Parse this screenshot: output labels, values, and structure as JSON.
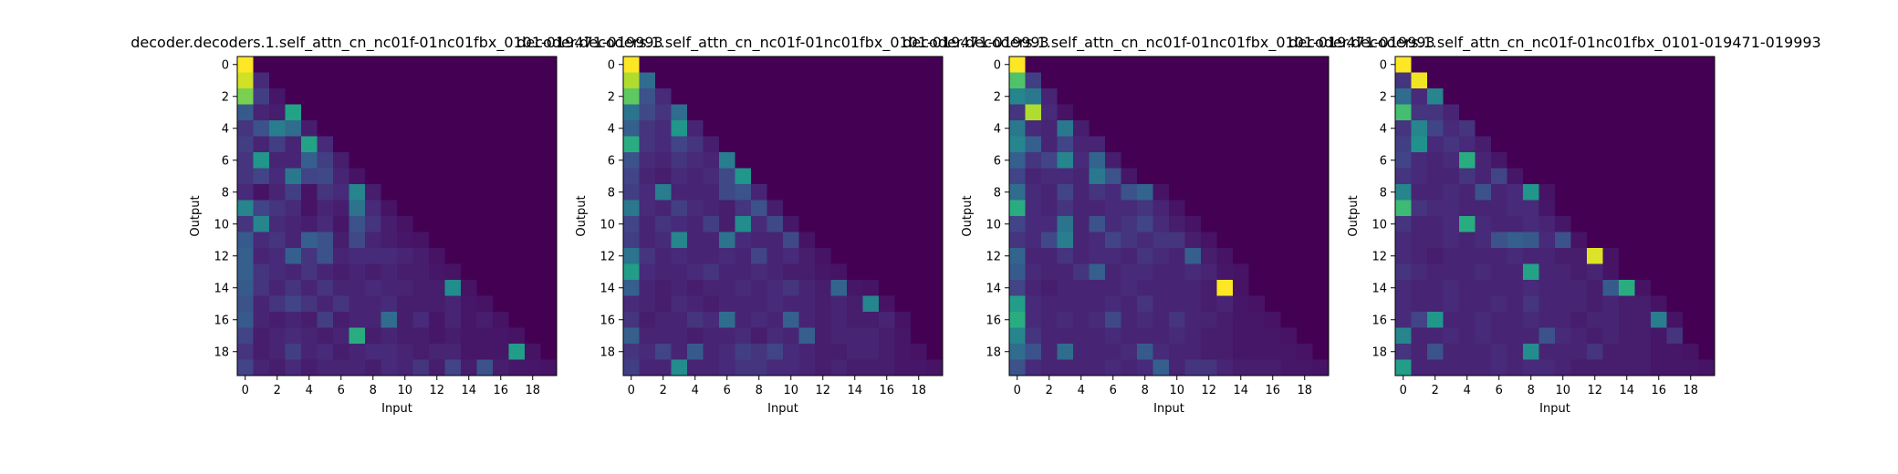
{
  "chart_data": [
    {
      "type": "heatmap",
      "title": "decoder.decoders.1.self_attn_cn_nc01f-01nc01fbx_0101-019471-019993",
      "xlabel": "Input",
      "ylabel": "Output",
      "xticks": [
        "0",
        "2",
        "4",
        "6",
        "8",
        "10",
        "12",
        "14",
        "16",
        "18"
      ],
      "yticks": [
        "0",
        "2",
        "4",
        "6",
        "8",
        "10",
        "12",
        "14",
        "16",
        "18"
      ],
      "size": 20,
      "colormap": "viridis",
      "vmin": 0,
      "vmax": 1,
      "values": [
        [
          1.0
        ],
        [
          0.93,
          0.12
        ],
        [
          0.8,
          0.18,
          0.06
        ],
        [
          0.28,
          0.1,
          0.08,
          0.58
        ],
        [
          0.15,
          0.25,
          0.42,
          0.35,
          0.08
        ],
        [
          0.18,
          0.1,
          0.18,
          0.1,
          0.58,
          0.12
        ],
        [
          0.15,
          0.52,
          0.1,
          0.1,
          0.3,
          0.18,
          0.08
        ],
        [
          0.15,
          0.2,
          0.12,
          0.4,
          0.2,
          0.22,
          0.1,
          0.05
        ],
        [
          0.12,
          0.05,
          0.1,
          0.18,
          0.05,
          0.15,
          0.12,
          0.45,
          0.08
        ],
        [
          0.45,
          0.2,
          0.15,
          0.12,
          0.05,
          0.1,
          0.08,
          0.38,
          0.12,
          0.05
        ],
        [
          0.15,
          0.45,
          0.12,
          0.1,
          0.08,
          0.12,
          0.06,
          0.25,
          0.15,
          0.08,
          0.05
        ],
        [
          0.28,
          0.12,
          0.15,
          0.1,
          0.3,
          0.25,
          0.08,
          0.22,
          0.1,
          0.08,
          0.06,
          0.05
        ],
        [
          0.3,
          0.1,
          0.12,
          0.3,
          0.15,
          0.25,
          0.1,
          0.12,
          0.12,
          0.12,
          0.1,
          0.08,
          0.05
        ],
        [
          0.3,
          0.15,
          0.12,
          0.1,
          0.15,
          0.1,
          0.08,
          0.1,
          0.08,
          0.1,
          0.08,
          0.08,
          0.06,
          0.05
        ],
        [
          0.28,
          0.15,
          0.1,
          0.15,
          0.1,
          0.15,
          0.1,
          0.1,
          0.12,
          0.1,
          0.1,
          0.08,
          0.08,
          0.48,
          0.05
        ],
        [
          0.25,
          0.1,
          0.15,
          0.2,
          0.15,
          0.1,
          0.15,
          0.1,
          0.1,
          0.12,
          0.08,
          0.08,
          0.08,
          0.1,
          0.06,
          0.05
        ],
        [
          0.28,
          0.1,
          0.08,
          0.1,
          0.08,
          0.18,
          0.08,
          0.1,
          0.1,
          0.35,
          0.08,
          0.12,
          0.06,
          0.1,
          0.06,
          0.08,
          0.05
        ],
        [
          0.2,
          0.08,
          0.1,
          0.12,
          0.1,
          0.08,
          0.1,
          0.62,
          0.08,
          0.1,
          0.08,
          0.08,
          0.06,
          0.08,
          0.06,
          0.06,
          0.06,
          0.05
        ],
        [
          0.15,
          0.08,
          0.1,
          0.18,
          0.1,
          0.12,
          0.08,
          0.1,
          0.12,
          0.12,
          0.1,
          0.08,
          0.1,
          0.1,
          0.06,
          0.06,
          0.06,
          0.55,
          0.05
        ],
        [
          0.2,
          0.1,
          0.08,
          0.12,
          0.08,
          0.1,
          0.1,
          0.1,
          0.08,
          0.12,
          0.1,
          0.15,
          0.08,
          0.2,
          0.08,
          0.25,
          0.08,
          0.06,
          0.06,
          0.05
        ]
      ]
    },
    {
      "type": "heatmap",
      "title": "decoder.decoders.1.self_attn_cn_nc01f-01nc01fbx_0101-019471-019993",
      "xlabel": "Input",
      "ylabel": "Output",
      "xticks": [
        "0",
        "2",
        "4",
        "6",
        "8",
        "10",
        "12",
        "14",
        "16",
        "18"
      ],
      "yticks": [
        "0",
        "2",
        "4",
        "6",
        "8",
        "10",
        "12",
        "14",
        "16",
        "18"
      ],
      "size": 20,
      "colormap": "viridis",
      "vmin": 0,
      "vmax": 1,
      "values": [
        [
          1.0
        ],
        [
          0.88,
          0.35
        ],
        [
          0.75,
          0.25,
          0.12
        ],
        [
          0.38,
          0.22,
          0.15,
          0.35
        ],
        [
          0.3,
          0.15,
          0.12,
          0.52,
          0.1
        ],
        [
          0.62,
          0.15,
          0.12,
          0.2,
          0.15,
          0.08
        ],
        [
          0.25,
          0.12,
          0.1,
          0.15,
          0.12,
          0.1,
          0.42
        ],
        [
          0.2,
          0.1,
          0.08,
          0.12,
          0.1,
          0.12,
          0.22,
          0.52
        ],
        [
          0.18,
          0.12,
          0.42,
          0.1,
          0.1,
          0.1,
          0.22,
          0.25,
          0.1
        ],
        [
          0.4,
          0.12,
          0.1,
          0.18,
          0.12,
          0.1,
          0.08,
          0.15,
          0.25,
          0.08
        ],
        [
          0.2,
          0.1,
          0.15,
          0.12,
          0.1,
          0.18,
          0.08,
          0.48,
          0.12,
          0.22,
          0.06
        ],
        [
          0.18,
          0.1,
          0.12,
          0.45,
          0.1,
          0.1,
          0.38,
          0.12,
          0.1,
          0.1,
          0.22,
          0.05
        ],
        [
          0.38,
          0.15,
          0.1,
          0.12,
          0.1,
          0.1,
          0.12,
          0.1,
          0.2,
          0.1,
          0.12,
          0.08,
          0.05
        ],
        [
          0.55,
          0.12,
          0.1,
          0.1,
          0.12,
          0.15,
          0.1,
          0.1,
          0.12,
          0.1,
          0.08,
          0.08,
          0.06,
          0.05
        ],
        [
          0.3,
          0.1,
          0.08,
          0.1,
          0.08,
          0.1,
          0.1,
          0.12,
          0.1,
          0.12,
          0.15,
          0.1,
          0.08,
          0.32,
          0.06,
          0.05
        ],
        [
          0.12,
          0.1,
          0.08,
          0.12,
          0.1,
          0.08,
          0.1,
          0.1,
          0.1,
          0.12,
          0.1,
          0.1,
          0.08,
          0.1,
          0.08,
          0.45,
          0.05
        ],
        [
          0.15,
          0.08,
          0.1,
          0.1,
          0.15,
          0.12,
          0.35,
          0.1,
          0.12,
          0.1,
          0.3,
          0.1,
          0.08,
          0.1,
          0.08,
          0.08,
          0.1,
          0.05
        ],
        [
          0.3,
          0.1,
          0.1,
          0.1,
          0.08,
          0.1,
          0.1,
          0.12,
          0.08,
          0.12,
          0.1,
          0.3,
          0.08,
          0.1,
          0.1,
          0.1,
          0.08,
          0.06
        ],
        [
          0.15,
          0.12,
          0.2,
          0.1,
          0.28,
          0.1,
          0.12,
          0.18,
          0.15,
          0.2,
          0.12,
          0.1,
          0.08,
          0.08,
          0.1,
          0.1,
          0.08,
          0.06,
          0.05
        ],
        [
          0.18,
          0.1,
          0.1,
          0.48,
          0.1,
          0.1,
          0.12,
          0.15,
          0.15,
          0.12,
          0.12,
          0.1,
          0.08,
          0.1,
          0.08,
          0.08,
          0.08,
          0.06,
          0.06,
          0.05
        ]
      ]
    },
    {
      "type": "heatmap",
      "title": "decoder.decoders.1.self_attn_cn_nc01f-01nc01fbx_0101-019471-019993",
      "xlabel": "Input",
      "ylabel": "Output",
      "xticks": [
        "0",
        "2",
        "4",
        "6",
        "8",
        "10",
        "12",
        "14",
        "16",
        "18"
      ],
      "yticks": [
        "0",
        "2",
        "4",
        "6",
        "8",
        "10",
        "12",
        "14",
        "16",
        "18"
      ],
      "size": 20,
      "colormap": "viridis",
      "vmin": 0,
      "vmax": 1,
      "values": [
        [
          1.0
        ],
        [
          0.72,
          0.18
        ],
        [
          0.45,
          0.4,
          0.1
        ],
        [
          0.15,
          0.88,
          0.12,
          0.05
        ],
        [
          0.4,
          0.12,
          0.1,
          0.4,
          0.08
        ],
        [
          0.45,
          0.3,
          0.1,
          0.2,
          0.1,
          0.1
        ],
        [
          0.3,
          0.15,
          0.2,
          0.45,
          0.12,
          0.32,
          0.08
        ],
        [
          0.2,
          0.1,
          0.12,
          0.12,
          0.1,
          0.4,
          0.25,
          0.06
        ],
        [
          0.35,
          0.12,
          0.1,
          0.2,
          0.1,
          0.15,
          0.12,
          0.25,
          0.32,
          0.05
        ],
        [
          0.62,
          0.12,
          0.1,
          0.15,
          0.1,
          0.1,
          0.12,
          0.12,
          0.15,
          0.1,
          0.05
        ],
        [
          0.2,
          0.12,
          0.12,
          0.38,
          0.1,
          0.25,
          0.12,
          0.15,
          0.2,
          0.12,
          0.08,
          0.05
        ],
        [
          0.15,
          0.12,
          0.22,
          0.42,
          0.1,
          0.12,
          0.2,
          0.15,
          0.12,
          0.15,
          0.15,
          0.08,
          0.05
        ],
        [
          0.32,
          0.1,
          0.1,
          0.15,
          0.1,
          0.12,
          0.12,
          0.1,
          0.15,
          0.12,
          0.1,
          0.3,
          0.08,
          0.05
        ],
        [
          0.28,
          0.12,
          0.1,
          0.1,
          0.15,
          0.3,
          0.1,
          0.12,
          0.12,
          0.1,
          0.1,
          0.12,
          0.1,
          0.06,
          0.05
        ],
        [
          0.2,
          0.1,
          0.08,
          0.1,
          0.1,
          0.1,
          0.1,
          0.12,
          0.1,
          0.1,
          0.1,
          0.1,
          0.08,
          1.0,
          0.05
        ],
        [
          0.55,
          0.12,
          0.1,
          0.1,
          0.1,
          0.1,
          0.12,
          0.1,
          0.15,
          0.1,
          0.1,
          0.1,
          0.08,
          0.1,
          0.06,
          0.05
        ],
        [
          0.62,
          0.12,
          0.1,
          0.12,
          0.1,
          0.12,
          0.22,
          0.1,
          0.12,
          0.1,
          0.15,
          0.1,
          0.1,
          0.08,
          0.06,
          0.06,
          0.05
        ],
        [
          0.45,
          0.15,
          0.1,
          0.1,
          0.1,
          0.1,
          0.12,
          0.1,
          0.1,
          0.1,
          0.12,
          0.1,
          0.08,
          0.08,
          0.06,
          0.06,
          0.06,
          0.05
        ],
        [
          0.35,
          0.25,
          0.1,
          0.35,
          0.1,
          0.1,
          0.1,
          0.12,
          0.28,
          0.12,
          0.1,
          0.1,
          0.08,
          0.08,
          0.06,
          0.06,
          0.06,
          0.06,
          0.05
        ],
        [
          0.25,
          0.12,
          0.1,
          0.1,
          0.1,
          0.1,
          0.12,
          0.1,
          0.12,
          0.3,
          0.1,
          0.15,
          0.15,
          0.1,
          0.08,
          0.08,
          0.08,
          0.06,
          0.06,
          0.05
        ]
      ]
    },
    {
      "type": "heatmap",
      "title": "decoder.decoders.1.self_attn_cn_nc01f-01nc01fbx_0101-019471-019993",
      "xlabel": "Input",
      "ylabel": "Output",
      "xticks": [
        "0",
        "2",
        "4",
        "6",
        "8",
        "10",
        "12",
        "14",
        "16",
        "18"
      ],
      "yticks": [
        "0",
        "2",
        "4",
        "6",
        "8",
        "10",
        "12",
        "14",
        "16",
        "18"
      ],
      "size": 20,
      "colormap": "viridis",
      "vmin": 0,
      "vmax": 1,
      "values": [
        [
          1.0
        ],
        [
          0.15,
          0.98
        ],
        [
          0.35,
          0.12,
          0.45
        ],
        [
          0.7,
          0.15,
          0.15,
          0.1
        ],
        [
          0.15,
          0.45,
          0.2,
          0.12,
          0.15
        ],
        [
          0.18,
          0.5,
          0.12,
          0.15,
          0.12,
          0.08
        ],
        [
          0.2,
          0.12,
          0.1,
          0.12,
          0.62,
          0.1,
          0.06
        ],
        [
          0.15,
          0.12,
          0.1,
          0.1,
          0.15,
          0.1,
          0.2,
          0.06
        ],
        [
          0.45,
          0.1,
          0.1,
          0.12,
          0.1,
          0.25,
          0.1,
          0.12,
          0.52,
          0.05
        ],
        [
          0.68,
          0.15,
          0.12,
          0.12,
          0.1,
          0.1,
          0.1,
          0.12,
          0.12,
          0.06
        ],
        [
          0.15,
          0.1,
          0.1,
          0.12,
          0.62,
          0.12,
          0.1,
          0.1,
          0.12,
          0.1,
          0.06
        ],
        [
          0.12,
          0.1,
          0.1,
          0.12,
          0.1,
          0.12,
          0.25,
          0.3,
          0.28,
          0.12,
          0.25,
          0.05
        ],
        [
          0.12,
          0.1,
          0.08,
          0.1,
          0.1,
          0.1,
          0.1,
          0.12,
          0.1,
          0.1,
          0.08,
          0.08,
          0.95,
          0.05
        ],
        [
          0.15,
          0.12,
          0.1,
          0.1,
          0.1,
          0.12,
          0.1,
          0.1,
          0.58,
          0.1,
          0.1,
          0.08,
          0.1,
          0.05
        ],
        [
          0.12,
          0.1,
          0.1,
          0.12,
          0.1,
          0.1,
          0.1,
          0.1,
          0.12,
          0.1,
          0.1,
          0.1,
          0.08,
          0.28,
          0.62,
          0.05
        ],
        [
          0.12,
          0.1,
          0.1,
          0.12,
          0.1,
          0.1,
          0.12,
          0.1,
          0.15,
          0.1,
          0.1,
          0.1,
          0.08,
          0.1,
          0.08,
          0.08,
          0.05
        ],
        [
          0.12,
          0.2,
          0.52,
          0.1,
          0.1,
          0.12,
          0.1,
          0.1,
          0.12,
          0.1,
          0.1,
          0.08,
          0.1,
          0.1,
          0.08,
          0.08,
          0.42,
          0.05
        ],
        [
          0.45,
          0.1,
          0.1,
          0.12,
          0.1,
          0.12,
          0.1,
          0.1,
          0.1,
          0.25,
          0.12,
          0.1,
          0.08,
          0.1,
          0.08,
          0.08,
          0.06,
          0.15
        ],
        [
          0.15,
          0.1,
          0.25,
          0.1,
          0.1,
          0.1,
          0.12,
          0.1,
          0.48,
          0.1,
          0.1,
          0.1,
          0.15,
          0.08,
          0.08,
          0.08,
          0.06,
          0.06,
          0.05
        ],
        [
          0.55,
          0.1,
          0.1,
          0.1,
          0.1,
          0.1,
          0.12,
          0.1,
          0.12,
          0.12,
          0.1,
          0.08,
          0.08,
          0.08,
          0.08,
          0.08,
          0.06,
          0.06,
          0.06,
          0.05
        ]
      ]
    }
  ]
}
